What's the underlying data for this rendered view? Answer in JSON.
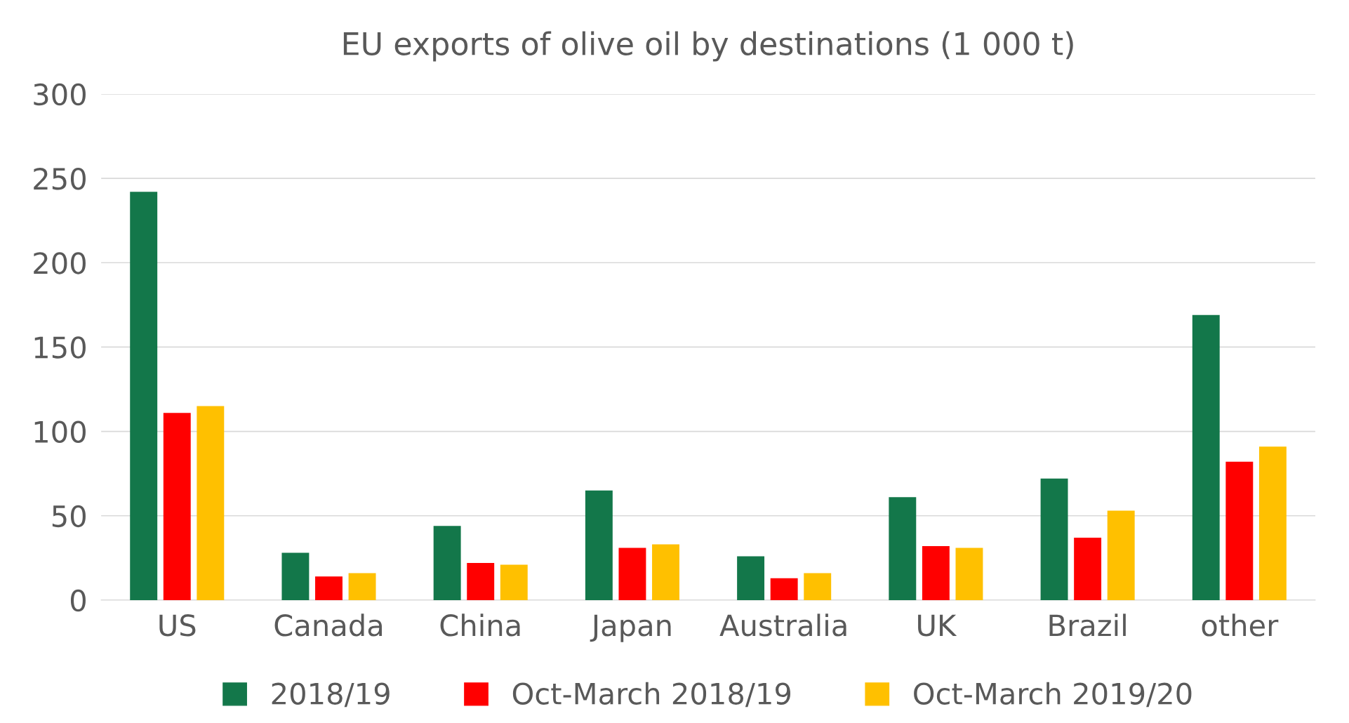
{
  "chart_data": {
    "type": "bar",
    "title": "EU exports of olive oil by destinations (1 000 t)",
    "categories": [
      "US",
      "Canada",
      "China",
      "Japan",
      "Australia",
      "UK",
      "Brazil",
      "other"
    ],
    "series": [
      {
        "name": "2018/19",
        "color": "#13774a",
        "values": [
          242,
          28,
          44,
          65,
          26,
          61,
          72,
          169
        ]
      },
      {
        "name": "Oct-March 2018/19",
        "color": "#ff0000",
        "values": [
          111,
          14,
          22,
          31,
          13,
          32,
          37,
          82
        ]
      },
      {
        "name": "Oct-March 2019/20",
        "color": "#ffc000",
        "values": [
          115,
          16,
          21,
          33,
          16,
          31,
          53,
          91
        ]
      }
    ],
    "ylim": [
      0,
      300
    ],
    "yticks": [
      0,
      50,
      100,
      150,
      200,
      250,
      300
    ],
    "grid": "y",
    "legend": "bottom"
  }
}
